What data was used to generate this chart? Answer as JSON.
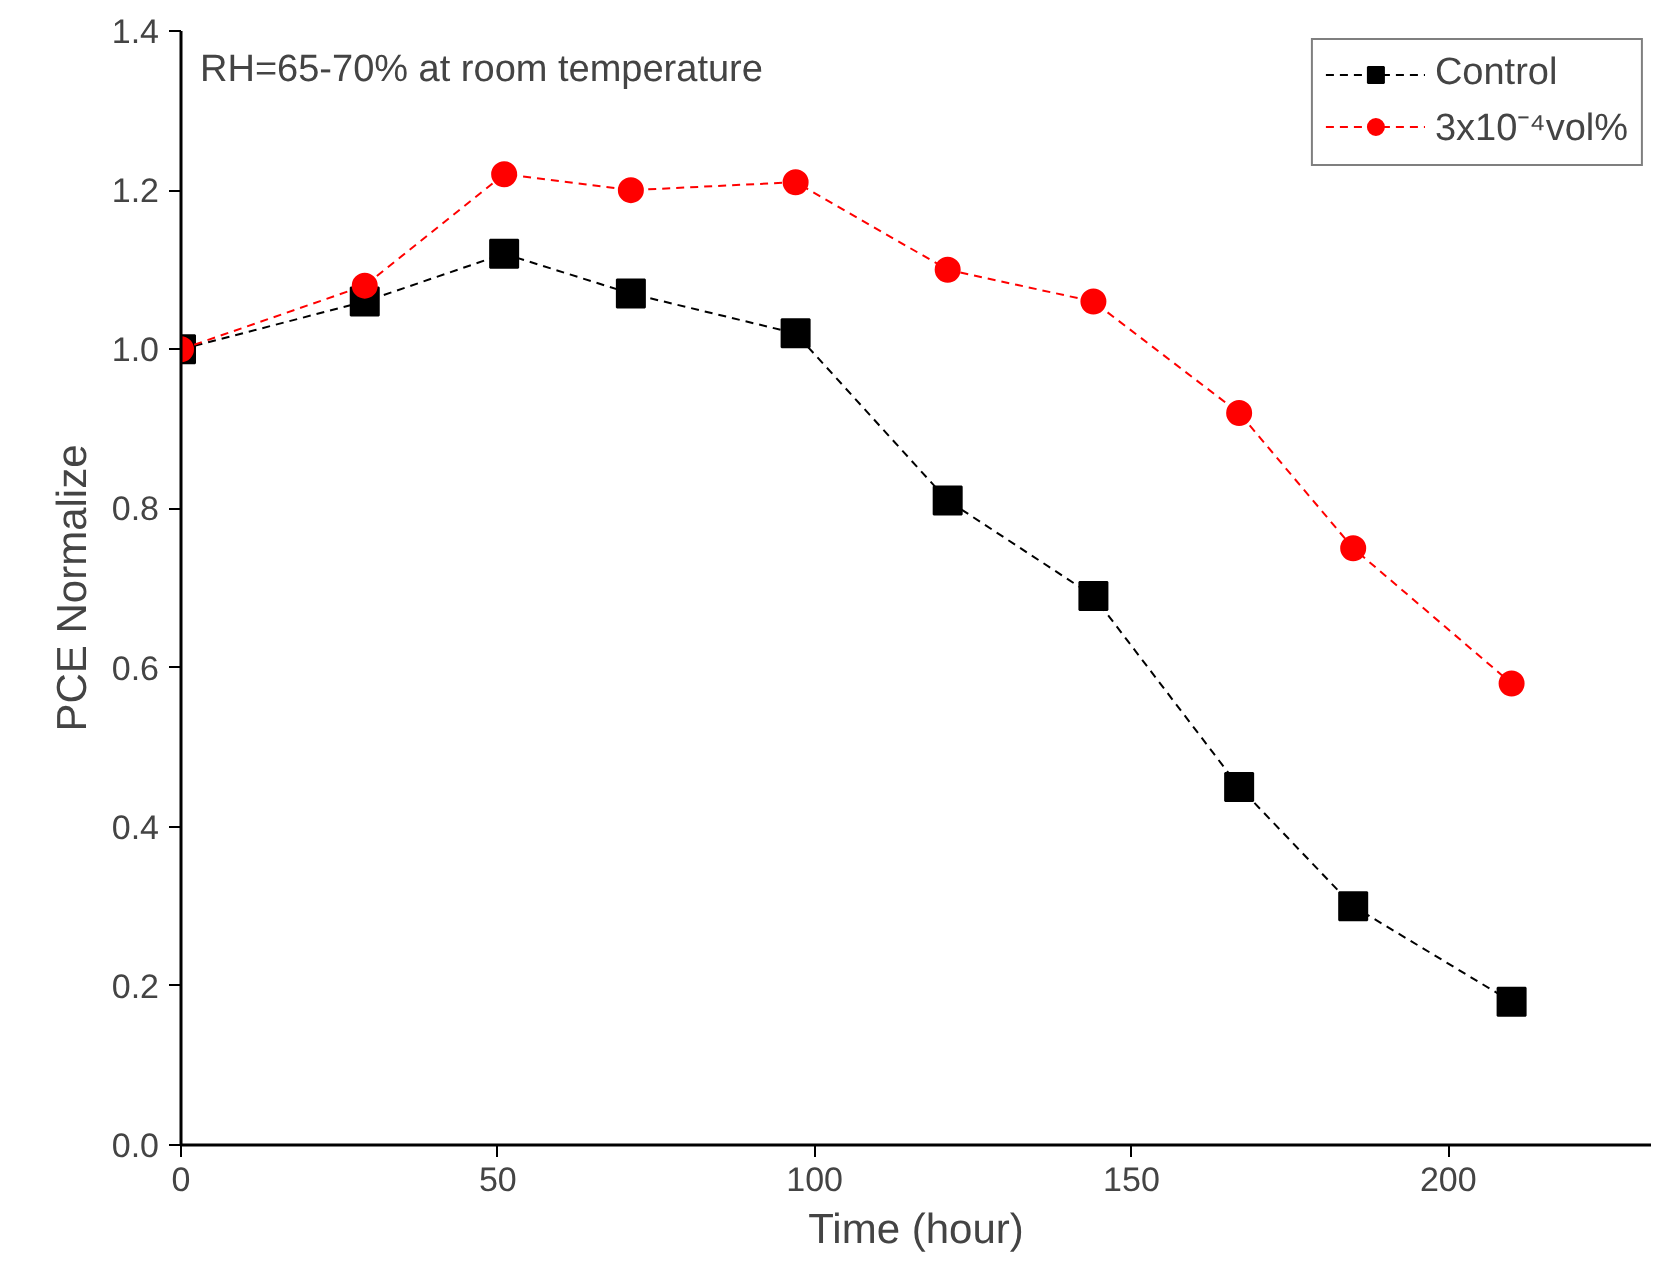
{
  "chart_data": {
    "type": "line",
    "xlabel": "Time (hour)",
    "ylabel": "PCE Normalize",
    "annotations": [
      "RH=65-70% at room temperature"
    ],
    "x": [
      0,
      29,
      51,
      71,
      97,
      121,
      144,
      167,
      185,
      210
    ],
    "series": [
      {
        "name": "Control",
        "color": "#000000",
        "marker": "square",
        "values": [
          1.0,
          1.06,
          1.12,
          1.07,
          1.02,
          0.81,
          0.69,
          0.45,
          0.3,
          0.18
        ]
      },
      {
        "name": "3x10⁻⁴vol%",
        "color": "#ff0000",
        "marker": "circle",
        "values": [
          1.0,
          1.08,
          1.22,
          1.2,
          1.21,
          1.1,
          1.06,
          0.92,
          0.75,
          0.58
        ]
      }
    ],
    "xlim": [
      0,
      232
    ],
    "xticks": [
      0,
      50,
      100,
      150,
      200
    ],
    "ylim": [
      0.0,
      1.4
    ],
    "yticks": [
      {
        "value": 0,
        "label": "0.0"
      },
      {
        "value": 0.2,
        "label": "0.2"
      },
      {
        "value": 0.4,
        "label": "0.4"
      },
      {
        "value": 0.6,
        "label": "0.6"
      },
      {
        "value": 0.8,
        "label": "0.8"
      },
      {
        "value": 1.0,
        "label": "1.0"
      },
      {
        "value": 1.2,
        "label": "1.2"
      },
      {
        "value": 1.4,
        "label": "1.4"
      }
    ],
    "grid": false,
    "legend": "top right",
    "line_style": "dashed"
  }
}
